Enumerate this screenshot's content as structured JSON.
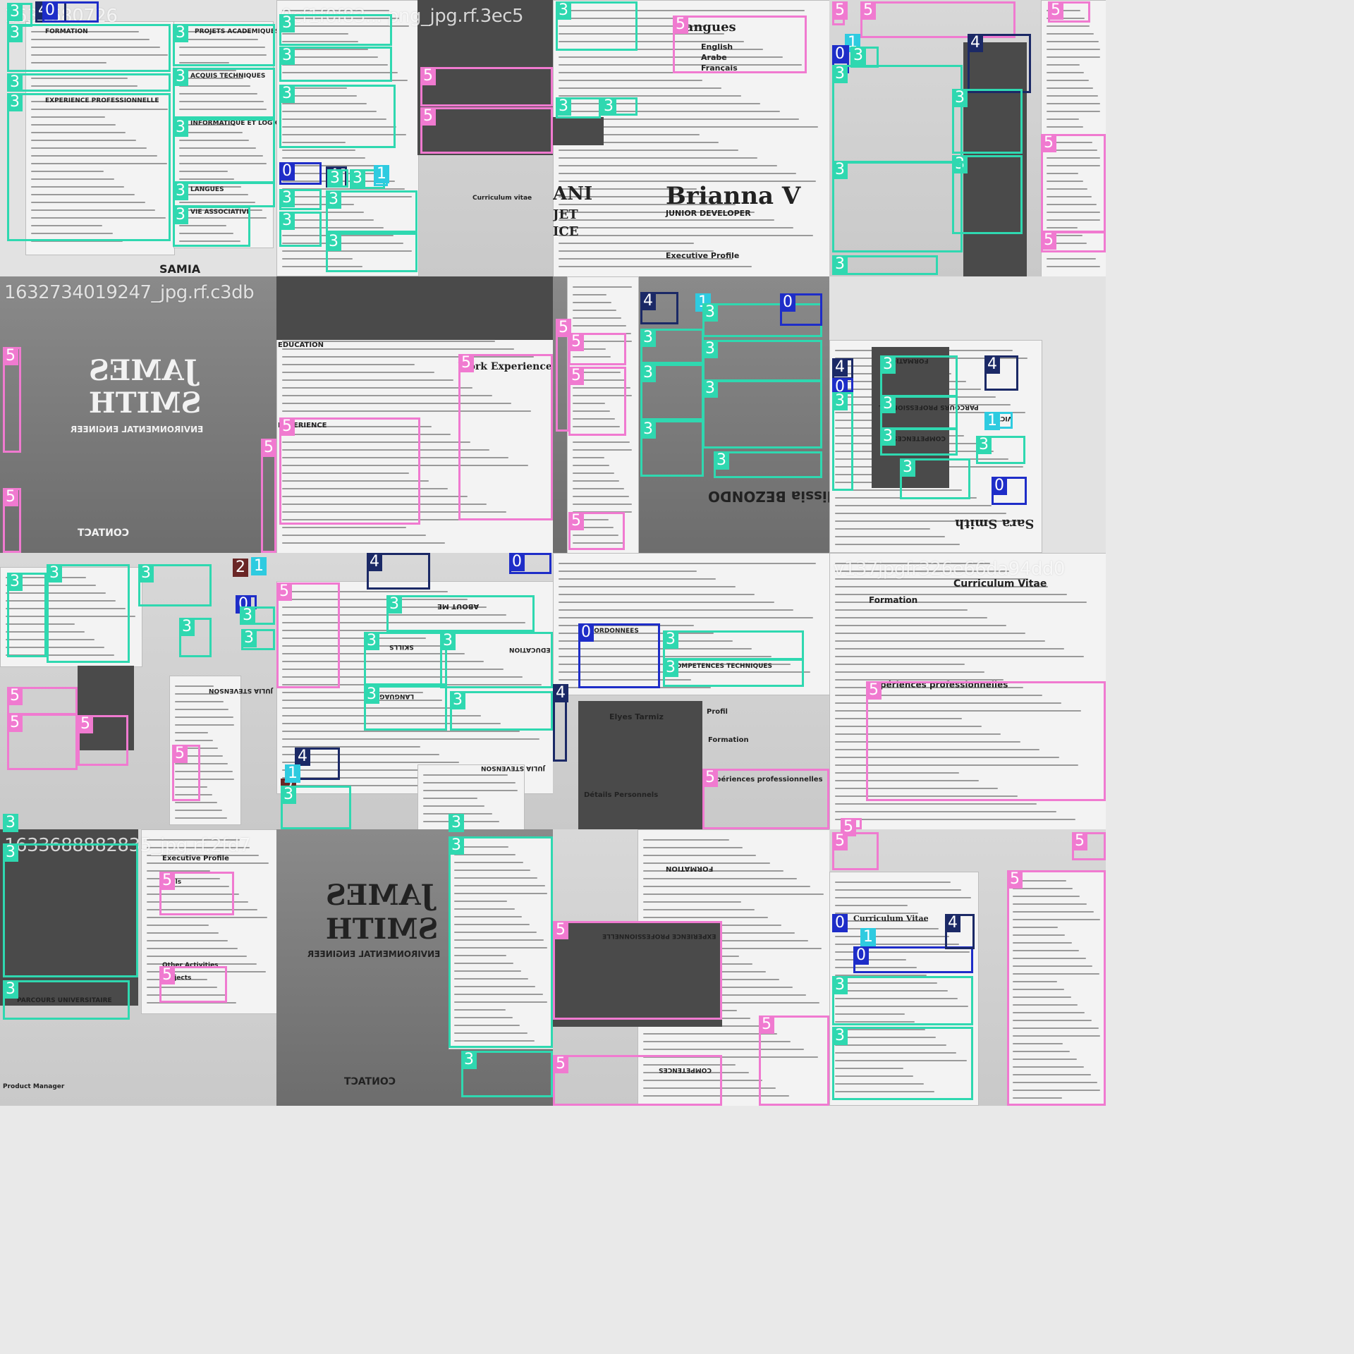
{
  "tiles": [
    {
      "filename": "1635680726",
      "texts": {
        "t1": "FORMATION",
        "t2": "PROJETS ACADEMIQUES",
        "t3": "ACQUIS TECHNIQUES",
        "t4": "EXPERIENCE PROFESSIONNELLE",
        "t5": "INFORMATIQUE ET LOGICIEL",
        "t6": "LANGUES",
        "t7": "VIE ASSOCIATIVE",
        "t8": "SAMIA"
      }
    },
    {
      "filename": "0cf1f0f83... png_jpg.rf.3ec5",
      "texts": {
        "t1": "Curriculum vitae"
      }
    },
    {
      "filename": "",
      "texts": {
        "t1": "Langues",
        "t2": "English",
        "t3": "Arabe",
        "t4": "Français",
        "t5": "Brianna V",
        "t6": "JUNIOR DEVELOPER",
        "t7": "ANI",
        "t8": "JET",
        "t9": "ICE",
        "t10": "Executive Profile"
      }
    },
    {
      "filename": "",
      "texts": {}
    },
    {
      "filename": "1632734019247_jpg.rf.c3db",
      "texts": {
        "t1": "JAMES",
        "t2": "SMITH",
        "t3": "ENVIRONMENTAL ENGINEER",
        "t4": "CONTACT"
      }
    },
    {
      "filename": "",
      "texts": {
        "t1": "EDUCATION",
        "t2": "EXPERIENCE",
        "t3": "Work Experience"
      }
    },
    {
      "filename": "",
      "texts": {
        "t1": "Alissia BEZONDO"
      }
    },
    {
      "filename": "",
      "texts": {
        "t1": "FORMATION",
        "t2": "PARCOURS PROFESSIONNEL",
        "t3": "COMPETENCES",
        "t4": "VICTOR",
        "t5": "Sara Smith"
      }
    },
    {
      "filename": "",
      "texts": {
        "t1": "JULIA STEVENSON"
      }
    },
    {
      "filename": "",
      "texts": {
        "t1": "ABOUT ME",
        "t2": "SKILLS",
        "t3": "EDUCATION",
        "t4": "LANGUAGE",
        "t5": "JULIA STEVENSON"
      }
    },
    {
      "filename": "",
      "texts": {
        "t1": "COORDONNEES",
        "t2": "Elyes Tarmiz",
        "t3": "Profil",
        "t4": "Formation",
        "t5": "Expériences professionnelles",
        "t6": "Détails Personnels",
        "t7": "COMPETENCES TECHNIQUES"
      }
    },
    {
      "filename": "v137jpgfr326e66da94dd0",
      "texts": {
        "t1": "Curriculum Vitae",
        "t2": "Formation",
        "t3": "Expériences professionnelles"
      }
    },
    {
      "filename": "1633688882835_jpg.rf.2fd7",
      "texts": {
        "t1": "Executive Profile",
        "t2": "Skills",
        "t3": "Other Activities",
        "t4": "Projects",
        "t5": "PARCOURS UNIVERSITAIRE",
        "t6": "Product Manager"
      }
    },
    {
      "filename": "",
      "texts": {
        "t1": "JAMES",
        "t2": "SMITH",
        "t3": "ENVIRONMENTAL ENGINEER",
        "t4": "CONTACT"
      }
    },
    {
      "filename": "",
      "texts": {
        "t1": "FORMATION",
        "t2": "EXPERIENCE PROFESSIONNELLE",
        "t3": "COMPETENCES"
      }
    },
    {
      "filename": "",
      "texts": {
        "t1": "Curriculum Vitae"
      }
    }
  ],
  "boxes": [
    {
      "tile": 0,
      "cls": "3",
      "r": [
        10,
        4,
        36,
        34
      ]
    },
    {
      "tile": 0,
      "cls": "4",
      "r": [
        50,
        2,
        44,
        30
      ]
    },
    {
      "tile": 0,
      "cls": "0",
      "r": [
        60,
        2,
        80,
        30
      ]
    },
    {
      "tile": 0,
      "cls": "3",
      "r": [
        10,
        34,
        232,
        68
      ]
    },
    {
      "tile": 0,
      "cls": "3",
      "r": [
        10,
        104,
        232,
        26
      ]
    },
    {
      "tile": 0,
      "cls": "3",
      "r": [
        10,
        132,
        232,
        210
      ]
    },
    {
      "tile": 0,
      "cls": "3",
      "r": [
        245,
        34,
        145,
        60
      ]
    },
    {
      "tile": 0,
      "cls": "3",
      "r": [
        245,
        96,
        145,
        72
      ]
    },
    {
      "tile": 0,
      "cls": "3",
      "r": [
        245,
        168,
        145,
        92
      ]
    },
    {
      "tile": 0,
      "cls": "3",
      "r": [
        245,
        258,
        145,
        36
      ]
    },
    {
      "tile": 0,
      "cls": "3",
      "r": [
        245,
        292,
        110,
        58
      ]
    },
    {
      "tile": 1,
      "cls": "3",
      "r": [
        4,
        20,
        160,
        45
      ]
    },
    {
      "tile": 1,
      "cls": "3",
      "r": [
        4,
        66,
        160,
        50
      ]
    },
    {
      "tile": 1,
      "cls": "3",
      "r": [
        4,
        120,
        165,
        90
      ]
    },
    {
      "tile": 1,
      "cls": "5",
      "r": [
        204,
        95,
        188,
        56
      ]
    },
    {
      "tile": 1,
      "cls": "5",
      "r": [
        204,
        152,
        188,
        66
      ]
    },
    {
      "tile": 1,
      "cls": "0",
      "r": [
        4,
        230,
        60,
        32
      ]
    },
    {
      "tile": 1,
      "cls": "4",
      "r": [
        70,
        236,
        30,
        30
      ]
    },
    {
      "tile": 1,
      "cls": "3",
      "r": [
        72,
        240,
        30,
        26
      ]
    },
    {
      "tile": 1,
      "cls": "3",
      "r": [
        104,
        240,
        50,
        28
      ]
    },
    {
      "tile": 1,
      "cls": "1",
      "r": [
        138,
        234,
        20,
        30
      ]
    },
    {
      "tile": 1,
      "cls": "3",
      "r": [
        4,
        268,
        60,
        30
      ]
    },
    {
      "tile": 1,
      "cls": "3",
      "r": [
        4,
        300,
        60,
        50
      ]
    },
    {
      "tile": 1,
      "cls": "3",
      "r": [
        70,
        270,
        130,
        60
      ]
    },
    {
      "tile": 1,
      "cls": "3",
      "r": [
        70,
        330,
        130,
        56
      ]
    },
    {
      "tile": 2,
      "cls": "3",
      "r": [
        4,
        2,
        116,
        70
      ]
    },
    {
      "tile": 2,
      "cls": "3",
      "r": [
        4,
        138,
        64,
        30
      ]
    },
    {
      "tile": 2,
      "cls": "3",
      "r": [
        68,
        138,
        52,
        26
      ]
    },
    {
      "tile": 2,
      "cls": "5",
      "r": [
        170,
        22,
        190,
        82
      ]
    },
    {
      "tile": 3,
      "cls": "5",
      "r": [
        4,
        2,
        18,
        34
      ]
    },
    {
      "tile": 3,
      "cls": "5",
      "r": [
        44,
        2,
        220,
        52
      ]
    },
    {
      "tile": 3,
      "cls": "5",
      "r": [
        310,
        2,
        60,
        30
      ]
    },
    {
      "tile": 3,
      "cls": "1",
      "r": [
        22,
        48,
        20,
        24
      ]
    },
    {
      "tile": 3,
      "cls": "0",
      "r": [
        4,
        64,
        24,
        40
      ]
    },
    {
      "tile": 3,
      "cls": "3",
      "r": [
        30,
        66,
        40,
        30
      ]
    },
    {
      "tile": 3,
      "cls": "4",
      "r": [
        196,
        48,
        90,
        84
      ]
    },
    {
      "tile": 3,
      "cls": "3",
      "r": [
        4,
        92,
        185,
        140
      ]
    },
    {
      "tile": 3,
      "cls": "3",
      "r": [
        174,
        126,
        100,
        92
      ]
    },
    {
      "tile": 3,
      "cls": "3",
      "r": [
        174,
        220,
        100,
        112
      ]
    },
    {
      "tile": 3,
      "cls": "3",
      "r": [
        4,
        228,
        185,
        130
      ]
    },
    {
      "tile": 3,
      "cls": "3",
      "r": [
        4,
        362,
        150,
        28
      ]
    },
    {
      "tile": 3,
      "cls": "5",
      "r": [
        300,
        190,
        92,
        140
      ]
    },
    {
      "tile": 3,
      "cls": "5",
      "r": [
        300,
        328,
        92,
        30
      ]
    },
    {
      "tile": 4,
      "cls": "5",
      "r": [
        4,
        100,
        26,
        150
      ]
    },
    {
      "tile": 4,
      "cls": "5",
      "r": [
        4,
        300,
        26,
        92
      ]
    },
    {
      "tile": 4,
      "cls": "5",
      "r": [
        370,
        230,
        22,
        162
      ]
    },
    {
      "tile": 5,
      "cls": "5",
      "r": [
        4,
        200,
        200,
        152
      ]
    },
    {
      "tile": 5,
      "cls": "5",
      "r": [
        258,
        110,
        134,
        236
      ]
    },
    {
      "tile": 6,
      "cls": "5",
      "r": [
        4,
        60,
        20,
        160
      ]
    },
    {
      "tile": 6,
      "cls": "5",
      "r": [
        22,
        80,
        82,
        46
      ]
    },
    {
      "tile": 6,
      "cls": "5",
      "r": [
        22,
        128,
        82,
        98
      ]
    },
    {
      "tile": 6,
      "cls": "4",
      "r": [
        124,
        22,
        54,
        46
      ]
    },
    {
      "tile": 6,
      "cls": "1",
      "r": [
        202,
        24,
        20,
        20
      ]
    },
    {
      "tile": 6,
      "cls": "3",
      "r": [
        212,
        38,
        170,
        48
      ]
    },
    {
      "tile": 6,
      "cls": "0",
      "r": [
        322,
        24,
        60,
        46
      ]
    },
    {
      "tile": 6,
      "cls": "3",
      "r": [
        124,
        74,
        90,
        50
      ]
    },
    {
      "tile": 6,
      "cls": "3",
      "r": [
        212,
        90,
        170,
        60
      ]
    },
    {
      "tile": 6,
      "cls": "3",
      "r": [
        124,
        124,
        90,
        80
      ]
    },
    {
      "tile": 6,
      "cls": "3",
      "r": [
        124,
        204,
        90,
        80
      ]
    },
    {
      "tile": 6,
      "cls": "3",
      "r": [
        212,
        146,
        170,
        98
      ]
    },
    {
      "tile": 6,
      "cls": "3",
      "r": [
        228,
        248,
        154,
        38
      ]
    },
    {
      "tile": 6,
      "cls": "5",
      "r": [
        22,
        334,
        80,
        54
      ]
    },
    {
      "tile": 7,
      "cls": "4",
      "r": [
        4,
        116,
        30,
        30
      ]
    },
    {
      "tile": 7,
      "cls": "0",
      "r": [
        4,
        144,
        30,
        20
      ]
    },
    {
      "tile": 7,
      "cls": "3",
      "r": [
        4,
        164,
        30,
        140
      ]
    },
    {
      "tile": 7,
      "cls": "3",
      "r": [
        72,
        112,
        110,
        60
      ]
    },
    {
      "tile": 7,
      "cls": "3",
      "r": [
        72,
        168,
        110,
        50
      ]
    },
    {
      "tile": 7,
      "cls": "3",
      "r": [
        72,
        214,
        110,
        40
      ]
    },
    {
      "tile": 7,
      "cls": "4",
      "r": [
        220,
        112,
        48,
        50
      ]
    },
    {
      "tile": 7,
      "cls": "1",
      "r": [
        220,
        192,
        40,
        24
      ]
    },
    {
      "tile": 7,
      "cls": "3",
      "r": [
        208,
        226,
        70,
        40
      ]
    },
    {
      "tile": 7,
      "cls": "3",
      "r": [
        100,
        258,
        100,
        58
      ]
    },
    {
      "tile": 7,
      "cls": "0",
      "r": [
        230,
        284,
        50,
        40
      ]
    },
    {
      "tile": 8,
      "cls": "3",
      "r": [
        10,
        28,
        56,
        120
      ]
    },
    {
      "tile": 8,
      "cls": "3",
      "r": [
        66,
        16,
        118,
        140
      ]
    },
    {
      "tile": 8,
      "cls": "3",
      "r": [
        196,
        16,
        104,
        60
      ]
    },
    {
      "tile": 8,
      "cls": "2",
      "r": [
        330,
        8,
        20,
        20
      ]
    },
    {
      "tile": 8,
      "cls": "1",
      "r": [
        356,
        6,
        20,
        24
      ]
    },
    {
      "tile": 8,
      "cls": "0",
      "r": [
        334,
        60,
        30,
        20
      ]
    },
    {
      "tile": 8,
      "cls": "3",
      "r": [
        340,
        76,
        50,
        26
      ]
    },
    {
      "tile": 8,
      "cls": "3",
      "r": [
        342,
        108,
        48,
        30
      ]
    },
    {
      "tile": 8,
      "cls": "3",
      "r": [
        254,
        92,
        46,
        56
      ]
    },
    {
      "tile": 8,
      "cls": "5",
      "r": [
        10,
        190,
        100,
        40
      ]
    },
    {
      "tile": 8,
      "cls": "5",
      "r": [
        10,
        228,
        100,
        80
      ]
    },
    {
      "tile": 8,
      "cls": "5",
      "r": [
        110,
        230,
        72,
        72
      ]
    },
    {
      "tile": 8,
      "cls": "5",
      "r": [
        244,
        272,
        40,
        80
      ]
    },
    {
      "tile": 8,
      "cls": "3",
      "r": [
        4,
        370,
        20,
        20
      ]
    },
    {
      "tile": 9,
      "cls": "4",
      "r": [
        128,
        0,
        90,
        52
      ]
    },
    {
      "tile": 9,
      "cls": "0",
      "r": [
        330,
        0,
        60,
        30
      ]
    },
    {
      "tile": 9,
      "cls": "5",
      "r": [
        0,
        42,
        90,
        150
      ]
    },
    {
      "tile": 9,
      "cls": "3",
      "r": [
        156,
        60,
        210,
        52
      ]
    },
    {
      "tile": 9,
      "cls": "3",
      "r": [
        124,
        112,
        118,
        76
      ]
    },
    {
      "tile": 9,
      "cls": "3",
      "r": [
        232,
        112,
        160,
        80
      ]
    },
    {
      "tile": 9,
      "cls": "3",
      "r": [
        124,
        188,
        118,
        64
      ]
    },
    {
      "tile": 9,
      "cls": "3",
      "r": [
        246,
        196,
        146,
        56
      ]
    },
    {
      "tile": 9,
      "cls": "4",
      "r": [
        26,
        276,
        64,
        46
      ]
    },
    {
      "tile": 9,
      "cls": "2",
      "r": [
        6,
        320,
        20,
        20
      ]
    },
    {
      "tile": 9,
      "cls": "1",
      "r": [
        12,
        300,
        14,
        20
      ]
    },
    {
      "tile": 9,
      "cls": "3",
      "r": [
        6,
        330,
        100,
        70
      ]
    },
    {
      "tile": 9,
      "cls": "3",
      "r": [
        244,
        370,
        20,
        20
      ]
    },
    {
      "tile": 10,
      "cls": "0",
      "r": [
        36,
        100,
        116,
        92
      ]
    },
    {
      "tile": 10,
      "cls": "3",
      "r": [
        156,
        110,
        200,
        42
      ]
    },
    {
      "tile": 10,
      "cls": "3",
      "r": [
        156,
        150,
        200,
        40
      ]
    },
    {
      "tile": 10,
      "cls": "4",
      "r": [
        0,
        186,
        20,
        110
      ]
    },
    {
      "tile": 10,
      "cls": "5",
      "r": [
        212,
        306,
        180,
        86
      ]
    },
    {
      "tile": 11,
      "cls": "5",
      "r": [
        52,
        182,
        340,
        170
      ]
    },
    {
      "tile": 11,
      "cls": "5",
      "r": [
        16,
        376,
        30,
        20
      ]
    },
    {
      "tile": 12,
      "cls": "3",
      "r": [
        4,
        20,
        192,
        190
      ]
    },
    {
      "tile": 12,
      "cls": "3",
      "r": [
        4,
        214,
        180,
        56
      ]
    },
    {
      "tile": 12,
      "cls": "5",
      "r": [
        226,
        60,
        106,
        62
      ]
    },
    {
      "tile": 12,
      "cls": "5",
      "r": [
        226,
        194,
        96,
        52
      ]
    },
    {
      "tile": 13,
      "cls": "3",
      "r": [
        244,
        10,
        148,
        300
      ]
    },
    {
      "tile": 13,
      "cls": "3",
      "r": [
        262,
        314,
        130,
        66
      ]
    },
    {
      "tile": 14,
      "cls": "5",
      "r": [
        0,
        130,
        240,
        140
      ]
    },
    {
      "tile": 14,
      "cls": "5",
      "r": [
        0,
        320,
        240,
        72
      ]
    },
    {
      "tile": 14,
      "cls": "5",
      "r": [
        292,
        264,
        100,
        128
      ]
    },
    {
      "tile": 15,
      "cls": "5",
      "r": [
        4,
        4,
        66,
        54
      ]
    },
    {
      "tile": 15,
      "cls": "5",
      "r": [
        344,
        4,
        48,
        40
      ]
    },
    {
      "tile": 15,
      "cls": "0",
      "r": [
        4,
        120,
        20,
        22
      ]
    },
    {
      "tile": 15,
      "cls": "1",
      "r": [
        44,
        140,
        20,
        20
      ]
    },
    {
      "tile": 15,
      "cls": "0",
      "r": [
        34,
        166,
        170,
        38
      ]
    },
    {
      "tile": 15,
      "cls": "4",
      "r": [
        164,
        120,
        42,
        50
      ]
    },
    {
      "tile": 15,
      "cls": "3",
      "r": [
        4,
        208,
        200,
        70
      ]
    },
    {
      "tile": 15,
      "cls": "3",
      "r": [
        4,
        280,
        200,
        104
      ]
    },
    {
      "tile": 15,
      "cls": "5",
      "r": [
        252,
        58,
        140,
        334
      ]
    }
  ],
  "grid": {
    "cols": 4,
    "rows": 4
  }
}
